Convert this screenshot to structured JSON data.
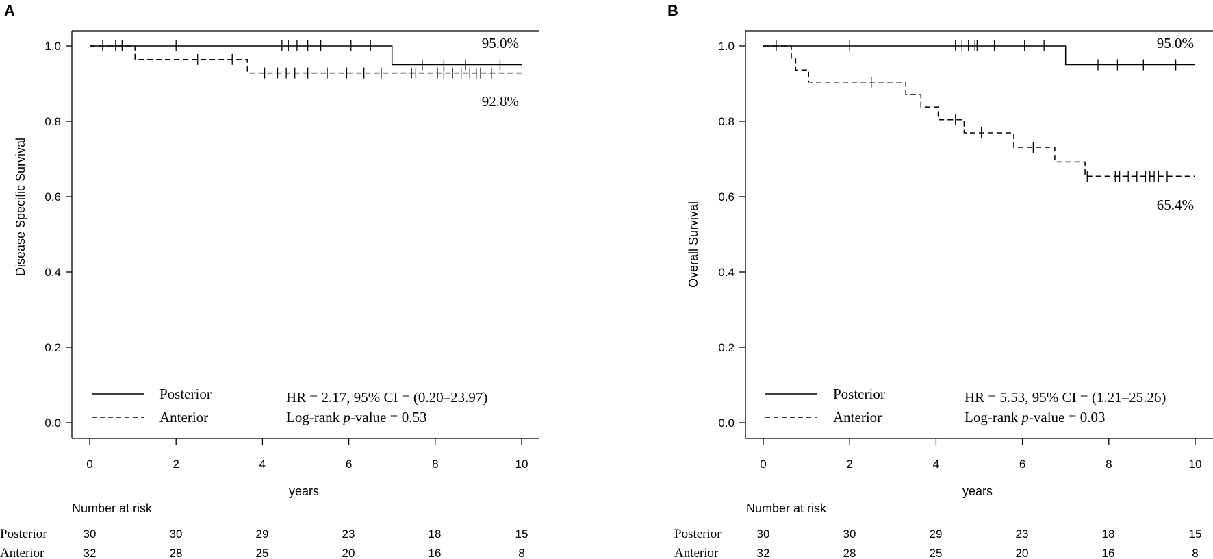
{
  "chart_data": [
    {
      "type": "line",
      "panel": "A",
      "xlabel": "years",
      "ylabel": "Disease Specific Survival",
      "xlim": [
        0,
        10
      ],
      "ylim": [
        0,
        1
      ],
      "xticks": [
        "0",
        "2",
        "4",
        "6",
        "8",
        "10"
      ],
      "yticks": [
        "0.0",
        "0.2",
        "0.4",
        "0.6",
        "0.8",
        "1.0"
      ],
      "series": [
        {
          "name": "Posterior",
          "style": "solid",
          "steps": [
            [
              0,
              1.0
            ],
            [
              7.0,
              0.95
            ],
            [
              10,
              0.95
            ]
          ],
          "censor_times": [
            0.3,
            0.6,
            0.75,
            2.0,
            4.45,
            4.6,
            4.8,
            5.05,
            5.35,
            6.05,
            6.5,
            7.7,
            8.2,
            8.7,
            9.5
          ],
          "end_label": "95.0%"
        },
        {
          "name": "Anterior",
          "style": "dashed",
          "steps": [
            [
              0,
              1.0
            ],
            [
              1.05,
              0.964
            ],
            [
              3.65,
              0.928
            ],
            [
              10,
              0.928
            ]
          ],
          "censor_times": [
            2.5,
            3.3,
            4.05,
            4.35,
            4.55,
            4.75,
            5.05,
            5.5,
            5.95,
            6.35,
            6.75,
            7.45,
            7.55,
            8.05,
            8.2,
            8.4,
            8.6,
            8.8,
            8.95,
            9.05,
            9.3
          ],
          "end_label": "92.8%"
        }
      ],
      "legend": [
        "Posterior",
        "Anterior"
      ],
      "stats": {
        "hr": "HR = 2.17, 95% CI = (0.20–23.97)",
        "p_prefix": "Log-rank ",
        "p_italic": "p",
        "p_suffix": "-value = 0.53"
      },
      "risk_table": {
        "title": "Number at risk",
        "rows": [
          {
            "group": "Posterior",
            "values": [
              "30",
              "30",
              "29",
              "23",
              "18",
              "15"
            ]
          },
          {
            "group": "Anterior",
            "values": [
              "32",
              "28",
              "25",
              "20",
              "16",
              "8"
            ]
          }
        ]
      }
    },
    {
      "type": "line",
      "panel": "B",
      "xlabel": "years",
      "ylabel": "Overall Survival",
      "xlim": [
        0,
        10
      ],
      "ylim": [
        0,
        1
      ],
      "xticks": [
        "0",
        "2",
        "4",
        "6",
        "8",
        "10"
      ],
      "yticks": [
        "0.0",
        "0.2",
        "0.4",
        "0.6",
        "0.8",
        "1.0"
      ],
      "series": [
        {
          "name": "Posterior",
          "style": "solid",
          "steps": [
            [
              0,
              1.0
            ],
            [
              7.0,
              0.95
            ],
            [
              10,
              0.95
            ]
          ],
          "censor_times": [
            0.3,
            2.0,
            4.45,
            4.6,
            4.75,
            4.9,
            4.95,
            5.35,
            6.05,
            6.5,
            7.75,
            8.2,
            8.8,
            9.55
          ],
          "end_label": "95.0%"
        },
        {
          "name": "Anterior",
          "style": "dashed",
          "steps": [
            [
              0,
              1.0
            ],
            [
              0.65,
              0.968
            ],
            [
              0.75,
              0.936
            ],
            [
              1.05,
              0.904
            ],
            [
              3.3,
              0.871
            ],
            [
              3.65,
              0.838
            ],
            [
              4.05,
              0.804
            ],
            [
              4.65,
              0.769
            ],
            [
              5.8,
              0.731
            ],
            [
              6.75,
              0.692
            ],
            [
              7.45,
              0.654
            ],
            [
              10,
              0.654
            ]
          ],
          "censor_times": [
            2.5,
            4.45,
            5.05,
            6.25,
            7.5,
            8.15,
            8.25,
            8.45,
            8.65,
            8.85,
            8.95,
            9.05,
            9.15,
            9.35
          ],
          "end_label": "65.4%"
        }
      ],
      "legend": [
        "Posterior",
        "Anterior"
      ],
      "stats": {
        "hr": "HR = 5.53, 95% CI = (1.21–25.26)",
        "p_prefix": "Log-rank ",
        "p_italic": "p",
        "p_suffix": "-value = 0.03"
      },
      "risk_table": {
        "title": "Number at risk",
        "rows": [
          {
            "group": "Posterior",
            "values": [
              "30",
              "30",
              "29",
              "23",
              "18",
              "15"
            ]
          },
          {
            "group": "Anterior",
            "values": [
              "32",
              "28",
              "25",
              "20",
              "16",
              "8"
            ]
          }
        ]
      }
    }
  ]
}
